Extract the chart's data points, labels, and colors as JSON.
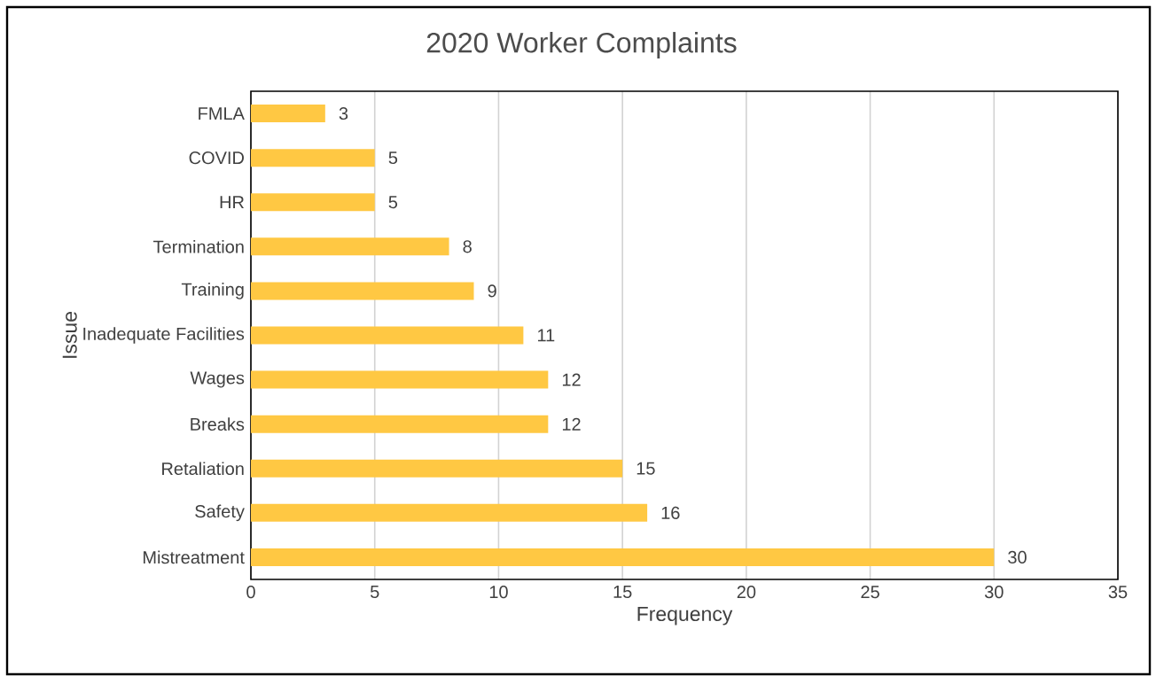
{
  "chart_data": {
    "type": "bar",
    "orientation": "horizontal",
    "title": "2020 Worker Complaints",
    "xlabel": "Frequency",
    "ylabel": "Issue",
    "categories": [
      "FMLA",
      "COVID",
      "HR",
      "Termination",
      "Training",
      "Inadequate Facilities",
      "Wages",
      "Breaks",
      "Retaliation",
      "Safety",
      "Mistreatment"
    ],
    "values": [
      3,
      5,
      5,
      8,
      9,
      11,
      12,
      12,
      15,
      16,
      30
    ],
    "color": "#ffc843",
    "xlim": [
      0,
      35
    ],
    "xticks": [
      0,
      5,
      10,
      15,
      20,
      25,
      30,
      35
    ],
    "grid": "x",
    "data_labels": true
  }
}
